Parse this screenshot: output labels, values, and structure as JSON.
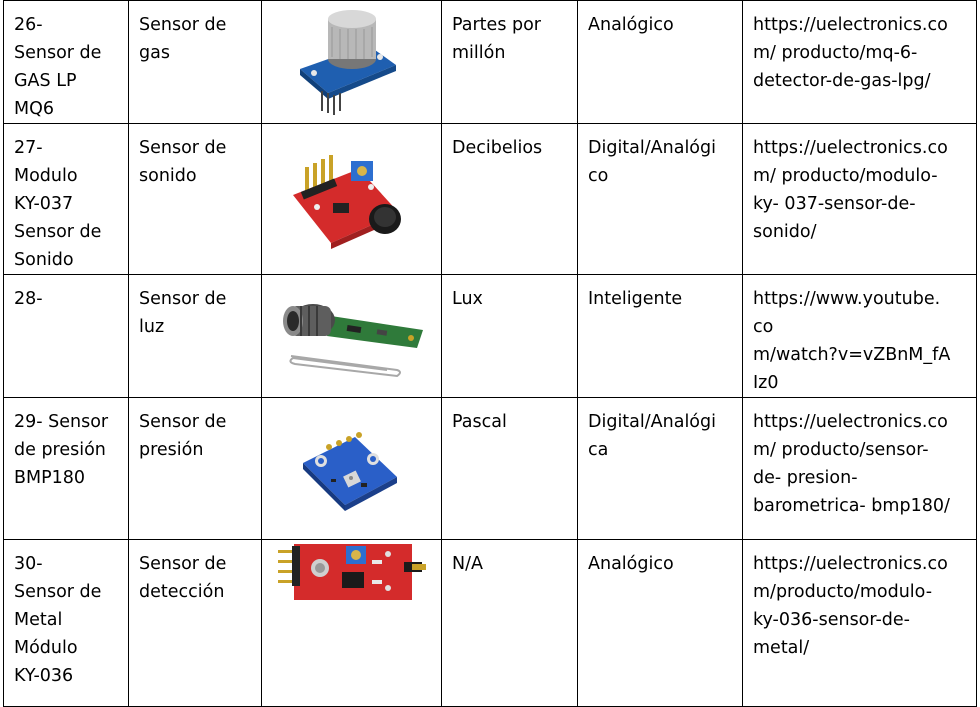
{
  "table": {
    "rows": [
      {
        "name": "26-\nSensor de\nGAS LP\nMQ6",
        "type": "Sensor de\ngas",
        "image_icon": "mq6-gas-sensor-image",
        "unit": "Partes por\nmillón",
        "signal": "Analógico",
        "link": "https://uelectronics.co\nm/ producto/mq-6-\ndetector-de-gas-lpg/"
      },
      {
        "name": "27-\nModulo\nKY-037\nSensor de\nSonido",
        "type": "Sensor de\nsonido",
        "image_icon": "ky037-sound-sensor-image",
        "unit": "Decibelios",
        "signal": "Digital/Analógi\nco",
        "link": "https://uelectronics.co\nm/ producto/modulo-\nky- 037-sensor-de-\nsonido/"
      },
      {
        "name": "28-",
        "type": "Sensor de\nluz",
        "image_icon": "light-sensor-image",
        "unit": "Lux",
        "signal": "Inteligente",
        "link": "https://www.youtube.\nco\nm/watch?v=vZBnM_fA\nIz0"
      },
      {
        "name": "29- Sensor\nde presión\nBMP180",
        "type": "Sensor de\npresión",
        "image_icon": "bmp180-pressure-sensor-image",
        "unit": "Pascal",
        "signal": "Digital/Analógi\nca",
        "link": "https://uelectronics.co\nm/ producto/sensor-\nde- presion-\nbarometrica- bmp180/"
      },
      {
        "name": "30-\nSensor de\nMetal\nMódulo\nKY-036",
        "type": "Sensor de\ndetección",
        "image_icon": "ky036-metal-sensor-image",
        "unit": "N/A",
        "signal": "Analógico",
        "link": "https://uelectronics.co\nm/producto/modulo-\nky-036-sensor-de-\nmetal/"
      }
    ]
  },
  "colors": {
    "border": "#000000",
    "pcb_blue": "#1f5fb0",
    "pcb_red": "#d42b2b",
    "pcb_green": "#2f7a3a",
    "metal": "#b8b8b8"
  }
}
